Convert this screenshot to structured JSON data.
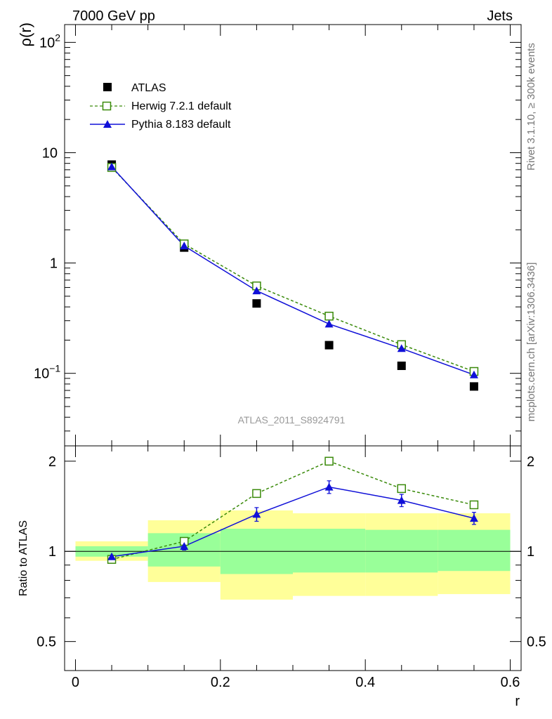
{
  "header": {
    "left_label": "7000 GeV pp",
    "right_label": "Jets"
  },
  "side_labels": {
    "rivet": "Rivet 3.1.10, ≥ 300k events",
    "mcplots": "mcplots.cern.ch [arXiv:1306.3436]"
  },
  "analysis_label": "ATLAS_2011_S8924791",
  "colors": {
    "atlas": "#000000",
    "herwig": "#3a8a0a",
    "pythia": "#1010d8",
    "band_inner": "#99ff99",
    "band_outer": "#ffff99"
  },
  "chart_data": [
    {
      "type": "scatter",
      "panel": "main",
      "ylabel_text": "ρ(r)",
      "yscale": "log",
      "ylim": [
        0.022,
        145
      ],
      "xlim": [
        -0.015,
        0.615
      ],
      "y_ticks": [
        {
          "value": 0.1,
          "base": "10",
          "exp": "−1"
        },
        {
          "value": 1,
          "base": "1",
          "exp": ""
        },
        {
          "value": 10,
          "base": "10",
          "exp": ""
        },
        {
          "value": 100,
          "base": "10",
          "exp": "2"
        }
      ],
      "legend_position": "top-left",
      "series": [
        {
          "name": "ATLAS",
          "key": "atlas",
          "x": [
            0.05,
            0.15,
            0.25,
            0.35,
            0.45,
            0.55
          ],
          "y": [
            7.8,
            1.38,
            0.43,
            0.18,
            0.117,
            0.076
          ]
        },
        {
          "name": "Herwig 7.2.1 default",
          "key": "herwig",
          "x": [
            0.05,
            0.15,
            0.25,
            0.35,
            0.45,
            0.55
          ],
          "y": [
            7.35,
            1.49,
            0.62,
            0.33,
            0.182,
            0.104
          ]
        },
        {
          "name": "Pythia 8.183 default",
          "key": "pythia",
          "x": [
            0.05,
            0.15,
            0.25,
            0.35,
            0.45,
            0.55
          ],
          "y": [
            7.45,
            1.43,
            0.56,
            0.28,
            0.168,
            0.097
          ]
        }
      ]
    },
    {
      "type": "line",
      "panel": "ratio",
      "ylabel": "Ratio to ATLAS",
      "xlabel": "r",
      "ylim": [
        0.4,
        2.25
      ],
      "xlim": [
        -0.015,
        0.615
      ],
      "x_ticks": [
        {
          "value": 0,
          "label": "0"
        },
        {
          "value": 0.2,
          "label": "0.2"
        },
        {
          "value": 0.4,
          "label": "0.4"
        },
        {
          "value": 0.6,
          "label": "0.6"
        }
      ],
      "y_ticks": [
        {
          "value": 0.5,
          "label": "0.5"
        },
        {
          "value": 1,
          "label": "1"
        },
        {
          "value": 2,
          "label": "2"
        }
      ],
      "bands": [
        {
          "x0": 0.0,
          "x1": 0.1,
          "outer": [
            0.93,
            1.08
          ],
          "inner": [
            0.96,
            1.04
          ]
        },
        {
          "x0": 0.1,
          "x1": 0.2,
          "outer": [
            0.79,
            1.27
          ],
          "inner": [
            0.89,
            1.15
          ]
        },
        {
          "x0": 0.2,
          "x1": 0.3,
          "outer": [
            0.69,
            1.37
          ],
          "inner": [
            0.84,
            1.19
          ]
        },
        {
          "x0": 0.3,
          "x1": 0.4,
          "outer": [
            0.71,
            1.34
          ],
          "inner": [
            0.85,
            1.19
          ]
        },
        {
          "x0": 0.4,
          "x1": 0.5,
          "outer": [
            0.71,
            1.34
          ],
          "inner": [
            0.85,
            1.18
          ]
        },
        {
          "x0": 0.5,
          "x1": 0.6,
          "outer": [
            0.72,
            1.34
          ],
          "inner": [
            0.86,
            1.18
          ]
        }
      ],
      "series": [
        {
          "name": "Herwig 7.2.1 default",
          "key": "herwig",
          "x": [
            0.05,
            0.15,
            0.25,
            0.35,
            0.45,
            0.55
          ],
          "y": [
            0.94,
            1.08,
            1.56,
            2.0,
            1.62,
            1.43
          ]
        },
        {
          "name": "Pythia 8.183 default",
          "key": "pythia",
          "x": [
            0.05,
            0.15,
            0.25,
            0.35,
            0.45,
            0.55
          ],
          "y": [
            0.96,
            1.04,
            1.33,
            1.64,
            1.48,
            1.29
          ],
          "yerr": [
            0.01,
            0.03,
            0.07,
            0.08,
            0.07,
            0.06
          ]
        }
      ]
    }
  ]
}
